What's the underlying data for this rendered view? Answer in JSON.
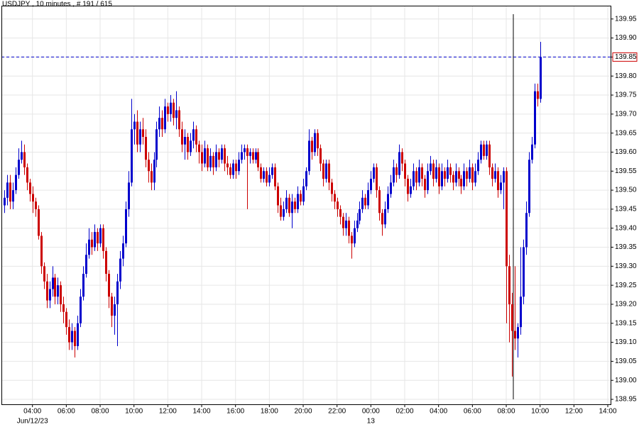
{
  "chart_data": {
    "type": "candlestick",
    "title": "USDJPY , 10 minutes , # 191 / 615",
    "up_color": "#0000cc",
    "down_color": "#cc0000",
    "grid": true,
    "last_price": 139.85,
    "last_price_color": "#0000cc",
    "ylim": [
      138.937,
      139.985
    ],
    "yticks": [
      138.95,
      {
        "value": 139.0,
        "label": "139.00"
      },
      139.05,
      {
        "value": 139.1,
        "label": "139.10"
      },
      139.15,
      {
        "value": 139.2,
        "label": "139.20"
      },
      139.25,
      {
        "value": 139.3,
        "label": "139.30"
      },
      139.35,
      {
        "value": 139.4,
        "label": "139.40"
      },
      139.45,
      {
        "value": 139.5,
        "label": "139.50"
      },
      139.55,
      {
        "value": 139.6,
        "label": "139.60"
      },
      139.65,
      {
        "value": 139.7,
        "label": "139.70"
      },
      139.75,
      {
        "value": 139.8,
        "label": "139.80"
      },
      139.85,
      {
        "value": 139.9,
        "label": "139.90"
      },
      139.95
    ],
    "xlim": [
      -1,
      215
    ],
    "xticks": [
      {
        "value": 10,
        "label": "04:00"
      },
      {
        "value": 22,
        "label": "06:00"
      },
      {
        "value": 34,
        "label": "08:00"
      },
      {
        "value": 46,
        "label": "10:00"
      },
      {
        "value": 58,
        "label": "12:00"
      },
      {
        "value": 70,
        "label": "14:00"
      },
      {
        "value": 82,
        "label": "16:00"
      },
      {
        "value": 94,
        "label": "18:00"
      },
      {
        "value": 106,
        "label": "20:00"
      },
      {
        "value": 118,
        "label": "22:00"
      },
      {
        "value": 130,
        "label": "00:00"
      },
      {
        "value": 142,
        "label": "02:00"
      },
      {
        "value": 154,
        "label": "04:00"
      },
      {
        "value": 166,
        "label": "06:00"
      },
      {
        "value": 178,
        "label": "08:00"
      },
      {
        "value": 190,
        "label": "10:00"
      },
      {
        "value": 202,
        "label": "12:00"
      },
      {
        "value": 214,
        "label": "14:00"
      }
    ],
    "date_labels": [
      {
        "value": 10,
        "label": "Jun/12/23"
      },
      {
        "value": 130,
        "label": "13"
      }
    ],
    "open": [
      139.46,
      139.48,
      139.52,
      139.47,
      139.5,
      139.54,
      139.58,
      139.6,
      139.56,
      139.52,
      139.49,
      139.47,
      139.45,
      139.38,
      139.3,
      139.26,
      139.21,
      139.24,
      139.27,
      139.22,
      139.25,
      139.2,
      139.18,
      139.14,
      139.1,
      139.13,
      139.09,
      139.15,
      139.22,
      139.28,
      139.33,
      139.37,
      139.35,
      139.39,
      139.36,
      139.4,
      139.34,
      139.28,
      139.22,
      139.17,
      139.2,
      139.26,
      139.32,
      139.36,
      139.45,
      139.52,
      139.66,
      139.68,
      139.62,
      139.66,
      139.64,
      139.58,
      139.55,
      139.52,
      139.58,
      139.66,
      139.69,
      139.66,
      139.72,
      139.7,
      139.73,
      139.69,
      139.71,
      139.66,
      139.62,
      139.64,
      139.6,
      139.63,
      139.66,
      139.62,
      139.6,
      139.57,
      139.61,
      139.56,
      139.59,
      139.56,
      139.6,
      139.58,
      139.61,
      139.57,
      139.56,
      139.54,
      139.57,
      139.55,
      139.58,
      139.6,
      139.61,
      139.59,
      139.6,
      139.58,
      139.6,
      139.56,
      139.53,
      139.55,
      139.52,
      139.54,
      139.56,
      139.51,
      139.46,
      139.43,
      139.45,
      139.48,
      139.44,
      139.47,
      139.45,
      139.49,
      139.47,
      139.51,
      139.55,
      139.63,
      139.6,
      139.65,
      139.61,
      139.57,
      139.53,
      139.57,
      139.52,
      139.49,
      139.47,
      139.45,
      139.43,
      139.4,
      139.42,
      139.38,
      139.36,
      139.4,
      139.42,
      139.45,
      139.48,
      139.46,
      139.5,
      139.53,
      139.56,
      139.5,
      139.44,
      139.41,
      139.45,
      139.49,
      139.52,
      139.56,
      139.54,
      139.6,
      139.57,
      139.53,
      139.49,
      139.51,
      139.55,
      139.52,
      139.56,
      139.53,
      139.5,
      139.55,
      139.57,
      139.53,
      139.56,
      139.51,
      139.55,
      139.53,
      139.56,
      139.54,
      139.52,
      139.55,
      139.53,
      139.51,
      139.55,
      139.53,
      139.56,
      139.52,
      139.55,
      139.58,
      139.62,
      139.59,
      139.62,
      139.56,
      139.53,
      139.55,
      139.5,
      139.52,
      139.55,
      139.3,
      139.2,
      139.13,
      139.11,
      139.14,
      139.22,
      139.35,
      139.44,
      139.58,
      139.62,
      139.76,
      139.74
    ],
    "high": [
      139.5,
      139.54,
      139.54,
      139.52,
      139.56,
      139.61,
      139.63,
      139.62,
      139.57,
      139.53,
      139.51,
      139.48,
      139.46,
      139.39,
      139.31,
      139.28,
      139.26,
      139.3,
      139.28,
      139.27,
      139.26,
      139.22,
      139.19,
      139.16,
      139.15,
      139.14,
      139.17,
      139.24,
      139.3,
      139.36,
      139.4,
      139.39,
      139.41,
      139.4,
      139.41,
      139.41,
      139.35,
      139.29,
      139.23,
      139.22,
      139.28,
      139.34,
      139.38,
      139.47,
      139.55,
      139.74,
      139.7,
      139.71,
      139.68,
      139.69,
      139.66,
      139.6,
      139.57,
      139.6,
      139.68,
      139.72,
      139.71,
      139.74,
      139.73,
      139.75,
      139.74,
      139.76,
      139.72,
      139.68,
      139.66,
      139.65,
      139.65,
      139.68,
      139.67,
      139.63,
      139.62,
      139.63,
      139.62,
      139.61,
      139.6,
      139.62,
      139.61,
      139.62,
      139.62,
      139.59,
      139.57,
      139.58,
      139.58,
      139.6,
      139.62,
      139.62,
      139.62,
      139.61,
      139.61,
      139.61,
      139.61,
      139.57,
      139.56,
      139.56,
      139.56,
      139.57,
      139.57,
      139.52,
      139.48,
      139.47,
      139.5,
      139.49,
      139.49,
      139.48,
      139.51,
      139.5,
      139.53,
      139.56,
      139.66,
      139.64,
      139.66,
      139.66,
      139.62,
      139.58,
      139.58,
      139.58,
      139.53,
      139.5,
      139.48,
      139.46,
      139.44,
      139.44,
      139.43,
      139.39,
      139.42,
      139.44,
      139.47,
      139.5,
      139.49,
      139.52,
      139.55,
      139.57,
      139.57,
      139.51,
      139.45,
      139.47,
      139.51,
      139.54,
      139.58,
      139.57,
      139.62,
      139.61,
      139.58,
      139.54,
      139.53,
      139.57,
      139.56,
      139.58,
      139.57,
      139.54,
      139.57,
      139.59,
      139.58,
      139.58,
      139.57,
      139.57,
      139.56,
      139.58,
      139.57,
      139.55,
      139.57,
      139.56,
      139.54,
      139.57,
      139.56,
      139.58,
      139.57,
      139.57,
      139.6,
      139.63,
      139.63,
      139.63,
      139.63,
      139.57,
      139.57,
      139.56,
      139.54,
      139.56,
      139.56,
      139.33,
      139.23,
      139.3,
      139.15,
      139.35,
      139.37,
      139.47,
      139.6,
      139.64,
      139.78,
      139.78,
      139.89
    ],
    "low": [
      139.44,
      139.46,
      139.45,
      139.45,
      139.49,
      139.53,
      139.57,
      139.54,
      139.5,
      139.47,
      139.44,
      139.43,
      139.37,
      139.28,
      139.24,
      139.19,
      139.19,
      139.22,
      139.2,
      139.2,
      139.18,
      139.15,
      139.12,
      139.08,
      139.08,
      139.06,
      139.08,
      139.14,
      139.21,
      139.27,
      139.32,
      139.33,
      139.34,
      139.34,
      139.35,
      139.32,
      139.26,
      139.19,
      139.14,
      139.12,
      139.09,
      139.24,
      139.3,
      139.35,
      139.43,
      139.51,
      139.62,
      139.6,
      139.6,
      139.62,
      139.56,
      139.52,
      139.5,
      139.5,
      139.56,
      139.64,
      139.64,
      139.65,
      139.68,
      139.68,
      139.67,
      139.66,
      139.64,
      139.6,
      139.58,
      139.58,
      139.59,
      139.61,
      139.6,
      139.57,
      139.55,
      139.56,
      139.55,
      139.55,
      139.54,
      139.55,
      139.56,
      139.57,
      139.55,
      139.54,
      139.53,
      139.53,
      139.53,
      139.54,
      139.57,
      139.58,
      139.45,
      139.57,
      139.57,
      139.57,
      139.55,
      139.52,
      139.52,
      139.51,
      139.51,
      139.53,
      139.5,
      139.44,
      139.42,
      139.42,
      139.44,
      139.43,
      139.4,
      139.44,
      139.44,
      139.46,
      139.46,
      139.5,
      139.54,
      139.58,
      139.59,
      139.59,
      139.55,
      139.51,
      139.52,
      139.5,
      139.47,
      139.45,
      139.43,
      139.41,
      139.38,
      139.38,
      139.36,
      139.32,
      139.35,
      139.39,
      139.41,
      139.44,
      139.45,
      139.45,
      139.49,
      139.52,
      139.48,
      139.42,
      139.38,
      139.4,
      139.44,
      139.48,
      139.51,
      139.52,
      139.53,
      139.55,
      139.51,
      139.47,
      139.48,
      139.5,
      139.5,
      139.51,
      139.51,
      139.48,
      139.49,
      139.54,
      139.51,
      139.52,
      139.49,
      139.5,
      139.51,
      139.52,
      139.52,
      139.5,
      139.51,
      139.51,
      139.49,
      139.5,
      139.51,
      139.52,
      139.5,
      139.51,
      139.54,
      139.57,
      139.58,
      139.58,
      139.54,
      139.51,
      139.52,
      139.48,
      139.49,
      139.45,
      139.15,
      139.1,
      139.01,
      139.08,
      139.06,
      139.12,
      139.2,
      139.33,
      139.43,
      139.57,
      139.61,
      139.72,
      139.73
    ],
    "close": [
      139.48,
      139.52,
      139.47,
      139.5,
      139.54,
      139.58,
      139.6,
      139.56,
      139.52,
      139.49,
      139.47,
      139.45,
      139.38,
      139.3,
      139.26,
      139.21,
      139.24,
      139.27,
      139.22,
      139.25,
      139.2,
      139.18,
      139.14,
      139.1,
      139.13,
      139.09,
      139.15,
      139.22,
      139.28,
      139.33,
      139.37,
      139.35,
      139.39,
      139.36,
      139.4,
      139.34,
      139.28,
      139.22,
      139.17,
      139.2,
      139.26,
      139.32,
      139.36,
      139.45,
      139.52,
      139.66,
      139.68,
      139.62,
      139.66,
      139.64,
      139.58,
      139.55,
      139.52,
      139.58,
      139.66,
      139.69,
      139.66,
      139.72,
      139.7,
      139.73,
      139.69,
      139.71,
      139.66,
      139.62,
      139.64,
      139.6,
      139.63,
      139.66,
      139.62,
      139.6,
      139.57,
      139.61,
      139.56,
      139.59,
      139.56,
      139.6,
      139.58,
      139.61,
      139.57,
      139.56,
      139.54,
      139.57,
      139.55,
      139.58,
      139.6,
      139.61,
      139.59,
      139.6,
      139.58,
      139.6,
      139.56,
      139.53,
      139.55,
      139.52,
      139.54,
      139.56,
      139.51,
      139.46,
      139.43,
      139.45,
      139.48,
      139.44,
      139.47,
      139.45,
      139.49,
      139.47,
      139.51,
      139.55,
      139.63,
      139.6,
      139.65,
      139.61,
      139.57,
      139.53,
      139.57,
      139.52,
      139.49,
      139.47,
      139.45,
      139.43,
      139.4,
      139.42,
      139.38,
      139.36,
      139.4,
      139.42,
      139.45,
      139.48,
      139.46,
      139.5,
      139.53,
      139.56,
      139.5,
      139.44,
      139.41,
      139.45,
      139.49,
      139.52,
      139.56,
      139.54,
      139.6,
      139.57,
      139.53,
      139.49,
      139.51,
      139.55,
      139.52,
      139.56,
      139.53,
      139.5,
      139.55,
      139.57,
      139.53,
      139.56,
      139.51,
      139.55,
      139.53,
      139.56,
      139.54,
      139.52,
      139.55,
      139.53,
      139.51,
      139.55,
      139.53,
      139.56,
      139.52,
      139.55,
      139.58,
      139.62,
      139.59,
      139.62,
      139.56,
      139.53,
      139.55,
      139.5,
      139.52,
      139.55,
      139.3,
      139.2,
      139.13,
      139.11,
      139.14,
      139.22,
      139.35,
      139.44,
      139.58,
      139.62,
      139.76,
      139.74,
      139.85
    ]
  }
}
